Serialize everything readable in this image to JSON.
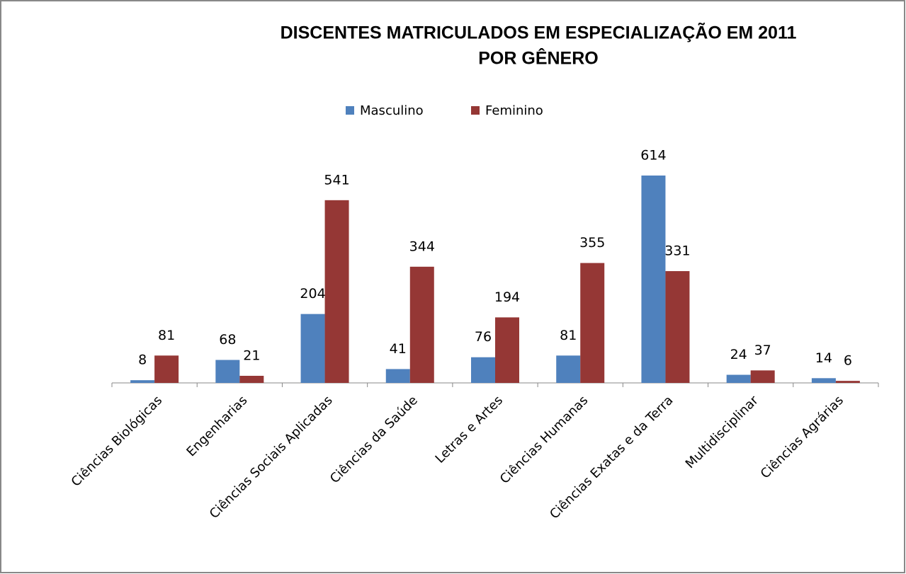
{
  "chart_data": {
    "type": "bar",
    "title": [
      "DISCENTES MATRICULADOS EM ESPECIALIZAÇÃO EM 2011",
      "POR GÊNERO"
    ],
    "categories": [
      "Ciências Biológicas",
      "Engenharias",
      "Ciências Sociais Aplicadas",
      "Ciências da Saúde",
      "Letras e Artes",
      "Ciências Humanas",
      "Ciências Exatas e da Terra",
      "Multidisciplinar",
      "Ciências Agrárias"
    ],
    "series": [
      {
        "name": "Masculino",
        "color": "#4f81bd",
        "values": [
          8,
          68,
          204,
          41,
          76,
          81,
          614,
          24,
          14
        ]
      },
      {
        "name": "Feminino",
        "color": "#953735",
        "values": [
          81,
          21,
          541,
          344,
          194,
          355,
          331,
          37,
          6
        ]
      }
    ],
    "legend": "top"
  }
}
